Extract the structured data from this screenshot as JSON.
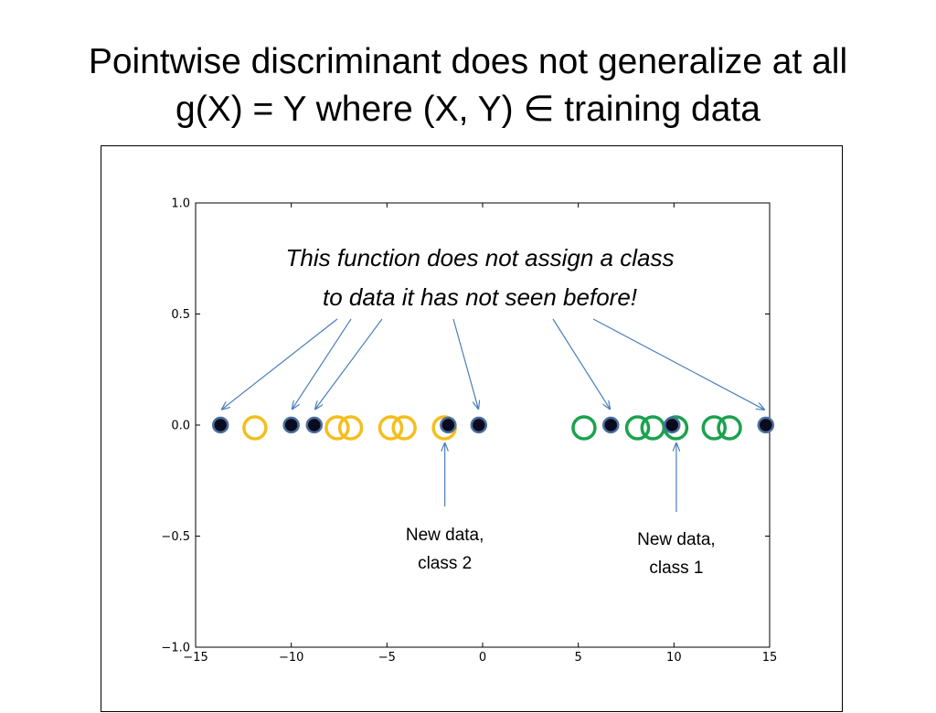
{
  "slide": {
    "title_line1": "Pointwise discriminant does not generalize at all",
    "title_line2": "g(X) = Y where (X, Y) ∈ training data"
  },
  "chart_data": {
    "type": "scatter",
    "xlim": [
      -15,
      15
    ],
    "ylim": [
      -1.0,
      1.0
    ],
    "x_ticks": [
      -15,
      -10,
      -5,
      0,
      5,
      10,
      15
    ],
    "x_tick_labels": [
      "−15",
      "−10",
      "−5",
      "0",
      "5",
      "10",
      "15"
    ],
    "y_ticks": [
      1.0,
      0.5,
      0.0,
      -0.5,
      -1.0
    ],
    "y_tick_labels": [
      "1.0",
      "0.5",
      "0.0",
      "−0.5",
      "−1.0"
    ],
    "grid": false,
    "series": [
      {
        "marker": "open-circle",
        "color": "#f5be1e",
        "x": [
          -11.9,
          -7.6,
          -6.9,
          -4.8,
          -4.1,
          -2.0
        ],
        "y": [
          0,
          0,
          0,
          0,
          0,
          0
        ]
      },
      {
        "marker": "open-circle",
        "color": "#1ba24e",
        "x": [
          5.3,
          8.1,
          8.9,
          10.1,
          12.1,
          12.9
        ],
        "y": [
          0,
          0,
          0,
          0,
          0,
          0
        ]
      },
      {
        "marker": "filled-circle",
        "color": "#0b0b1e",
        "edge_color": "#4a6f9e",
        "x": [
          -13.7,
          -10.0,
          -8.8,
          -1.8,
          -0.2,
          6.7,
          9.9,
          14.8
        ],
        "y": [
          0,
          0,
          0,
          0,
          0,
          0,
          0,
          0
        ]
      }
    ],
    "annotations": {
      "main_line1": "This function does not assign a class",
      "main_line2": "to data it has not seen before!",
      "new_class2_line1": "New data,",
      "new_class2_line2": "class 2",
      "new_class1_line1": "New data,",
      "new_class1_line2": "class 1"
    },
    "arrow_color": "#4a7ebb"
  }
}
